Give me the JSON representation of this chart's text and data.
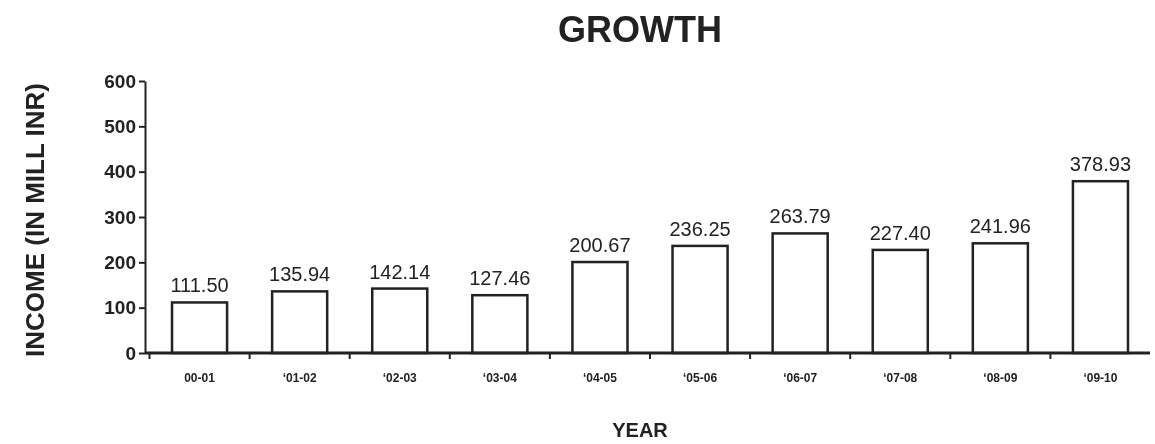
{
  "chart_data": {
    "type": "bar",
    "title": "GROWTH",
    "xlabel": "YEAR",
    "ylabel": "INCOME (IN MILL INR)",
    "categories": [
      "00-01",
      "‘01-02",
      "‘02-03",
      "‘03-04",
      "‘04-05",
      "‘05-06",
      "‘06-07",
      "‘07-08",
      "‘08-09",
      "‘09-10"
    ],
    "values": [
      111.5,
      135.94,
      142.14,
      127.46,
      200.67,
      236.25,
      263.79,
      227.4,
      241.96,
      378.93
    ],
    "value_labels": [
      "111.50",
      "135.94",
      "142.14",
      "127.46",
      "200.67",
      "236.25",
      "263.79",
      "227.40",
      "241.96",
      "378.93"
    ],
    "color": "#ffffff",
    "ylim": [
      0,
      600
    ],
    "yticks": [
      0,
      100,
      200,
      300,
      400,
      500,
      600
    ],
    "grid": false
  }
}
